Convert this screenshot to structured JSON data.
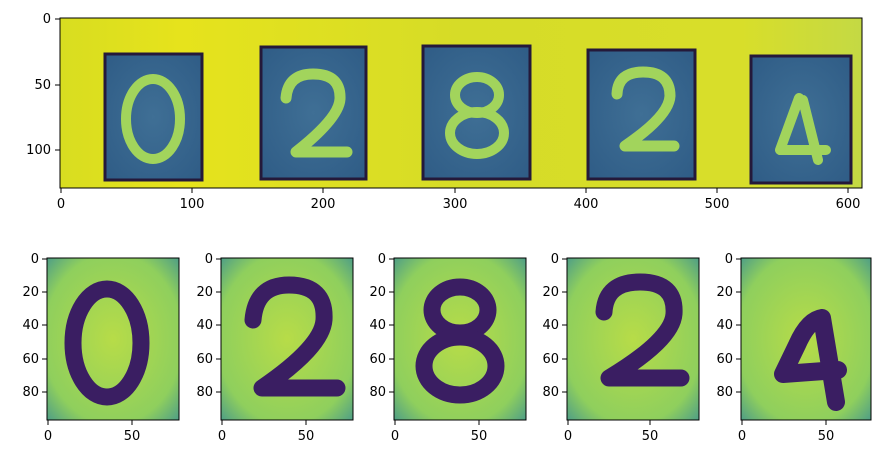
{
  "top_plot": {
    "x_ticks": [
      "0",
      "100",
      "200",
      "300",
      "400",
      "500",
      "600"
    ],
    "y_ticks": [
      "0",
      "50",
      "100"
    ],
    "digits": [
      "0",
      "2",
      "8",
      "2",
      "4"
    ]
  },
  "crops": [
    {
      "digit": "0",
      "x_ticks": [
        "0",
        "50"
      ],
      "y_ticks": [
        "0",
        "20",
        "40",
        "60",
        "80"
      ]
    },
    {
      "digit": "2",
      "x_ticks": [
        "0",
        "50"
      ],
      "y_ticks": [
        "0",
        "20",
        "40",
        "60",
        "80"
      ]
    },
    {
      "digit": "8",
      "x_ticks": [
        "0",
        "50"
      ],
      "y_ticks": [
        "0",
        "20",
        "40",
        "60",
        "80"
      ]
    },
    {
      "digit": "2",
      "x_ticks": [
        "0",
        "50"
      ],
      "y_ticks": [
        "0",
        "20",
        "40",
        "60",
        "80"
      ]
    },
    {
      "digit": "4",
      "x_ticks": [
        "0",
        "50"
      ],
      "y_ticks": [
        "0",
        "20",
        "40",
        "60",
        "80"
      ]
    }
  ],
  "colors": {
    "background_yellow": "#e3e21f",
    "plate_blue": "#3b6b91",
    "digit_green": "#9dd25c",
    "box_outline": "#2a1f3d",
    "crop_bg": "#a6d44f",
    "crop_digit": "#3a1e62"
  }
}
